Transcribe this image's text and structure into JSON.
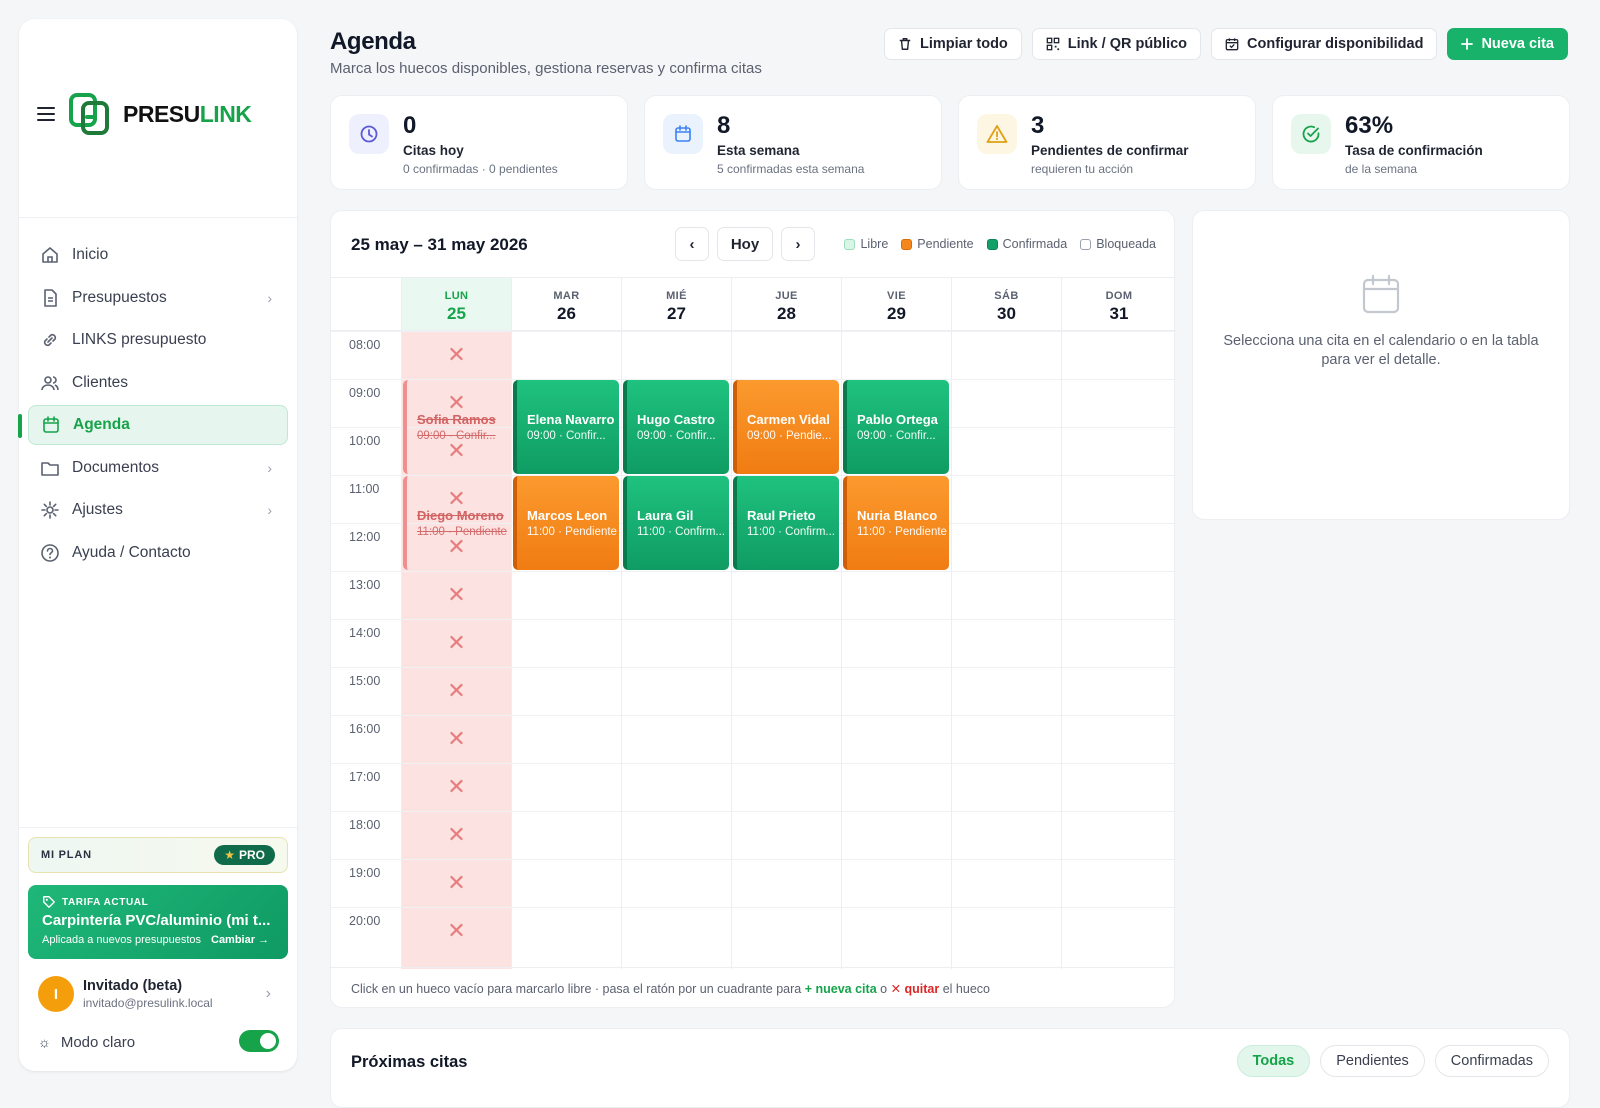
{
  "sidebar": {
    "brand": {
      "part1": "PRESU",
      "part2": "LINK"
    },
    "items": [
      {
        "label": "Inicio",
        "icon": "home-icon",
        "chevron": false,
        "active": false
      },
      {
        "label": "Presupuestos",
        "icon": "document-icon",
        "chevron": true,
        "active": false
      },
      {
        "label": "LINKS presupuesto",
        "icon": "link-icon",
        "chevron": false,
        "active": false
      },
      {
        "label": "Clientes",
        "icon": "users-icon",
        "chevron": false,
        "active": false
      },
      {
        "label": "Agenda",
        "icon": "calendar-icon",
        "chevron": false,
        "active": true
      },
      {
        "label": "Documentos",
        "icon": "folder-icon",
        "chevron": true,
        "active": false
      },
      {
        "label": "Ajustes",
        "icon": "gear-icon",
        "chevron": true,
        "active": false
      },
      {
        "label": "Ayuda / Contacto",
        "icon": "help-icon",
        "chevron": false,
        "active": false
      }
    ],
    "plan": {
      "label": "MI PLAN",
      "badge": "PRO"
    },
    "tarifa": {
      "tag": "TARIFA ACTUAL",
      "name": "Carpintería PVC/aluminio (mi t...",
      "note": "Aplicada a nuevos presupuestos",
      "action": "Cambiar →"
    },
    "user": {
      "initial": "I",
      "name": "Invitado (beta)",
      "email": "invitado@presulink.local"
    },
    "mode": {
      "label": "Modo claro",
      "on": true
    }
  },
  "header": {
    "title": "Agenda",
    "subtitle": "Marca los huecos disponibles, gestiona reservas y confirma citas",
    "actions": [
      {
        "label": "Limpiar todo",
        "icon": "trash-icon",
        "primary": false
      },
      {
        "label": "Link / QR público",
        "icon": "qr-icon",
        "primary": false
      },
      {
        "label": "Configurar disponibilidad",
        "icon": "calendar-check-icon",
        "primary": false
      },
      {
        "label": "Nueva cita",
        "icon": "plus-icon",
        "primary": true
      }
    ]
  },
  "stats": [
    {
      "value": "0",
      "label": "Citas hoy",
      "sub": "0 confirmadas · 0 pendientes",
      "icon": "clock-icon",
      "color": "#5b5bd6",
      "bg": "#eef0fd"
    },
    {
      "value": "8",
      "label": "Esta semana",
      "sub": "5 confirmadas esta semana",
      "icon": "calendar-icon",
      "color": "#3b82f6",
      "bg": "#eaf2fe"
    },
    {
      "value": "3",
      "label": "Pendientes de confirmar",
      "sub": "requieren tu acción",
      "icon": "warning-icon",
      "color": "#e0a012",
      "bg": "#fdf6e3"
    },
    {
      "value": "63%",
      "label": "Tasa de confirmación",
      "sub": "de la semana",
      "icon": "check-circle-icon",
      "color": "#16a34a",
      "bg": "#e7f7ee"
    }
  ],
  "calendar": {
    "range": "25 may – 31 may 2026",
    "today_label": "Hoy",
    "prev": "‹",
    "next": "›",
    "legend": [
      {
        "label": "Libre",
        "color": "#d9f5e6",
        "border": "#9ddcbc"
      },
      {
        "label": "Pendiente",
        "color": "#f5861c",
        "border": "#d96d0a"
      },
      {
        "label": "Confirmada",
        "color": "#11a068",
        "border": "#0b8656"
      },
      {
        "label": "Bloqueada",
        "color": "#ffffff",
        "border": "#9aa0ac"
      }
    ],
    "days": [
      {
        "name": "LUN",
        "num": "25",
        "today": true,
        "blocked": true
      },
      {
        "name": "MAR",
        "num": "26",
        "today": false,
        "blocked": false
      },
      {
        "name": "MIÉ",
        "num": "27",
        "today": false,
        "blocked": false
      },
      {
        "name": "JUE",
        "num": "28",
        "today": false,
        "blocked": false
      },
      {
        "name": "VIE",
        "num": "29",
        "today": false,
        "blocked": false
      },
      {
        "name": "SÁB",
        "num": "30",
        "today": false,
        "blocked": false
      },
      {
        "name": "DOM",
        "num": "31",
        "today": false,
        "blocked": false
      }
    ],
    "hours": [
      "08:00",
      "09:00",
      "10:00",
      "11:00",
      "12:00",
      "13:00",
      "14:00",
      "15:00",
      "16:00",
      "17:00",
      "18:00",
      "19:00",
      "20:00"
    ],
    "appointments": [
      {
        "day": 0,
        "start": 9,
        "name": "Sofia Ramos",
        "meta": "09:00 · Confir...",
        "status": "cancelled"
      },
      {
        "day": 0,
        "start": 11,
        "name": "Diego Moreno",
        "meta": "11:00 · Pendiente",
        "status": "cancelled"
      },
      {
        "day": 1,
        "start": 9,
        "name": "Elena Navarro",
        "meta": "09:00 · Confir...",
        "status": "confirmed"
      },
      {
        "day": 2,
        "start": 9,
        "name": "Hugo Castro",
        "meta": "09:00 · Confir...",
        "status": "confirmed"
      },
      {
        "day": 3,
        "start": 9,
        "name": "Carmen Vidal",
        "meta": "09:00 · Pendie...",
        "status": "pending"
      },
      {
        "day": 4,
        "start": 9,
        "name": "Pablo Ortega",
        "meta": "09:00 · Confir...",
        "status": "confirmed"
      },
      {
        "day": 1,
        "start": 11,
        "name": "Marcos Leon",
        "meta": "11:00 · Pendiente",
        "status": "pending"
      },
      {
        "day": 2,
        "start": 11,
        "name": "Laura Gil",
        "meta": "11:00 · Confirm...",
        "status": "confirmed"
      },
      {
        "day": 3,
        "start": 11,
        "name": "Raul Prieto",
        "meta": "11:00 · Confirm...",
        "status": "confirmed"
      },
      {
        "day": 4,
        "start": 11,
        "name": "Nuria Blanco",
        "meta": "11:00 · Pendiente",
        "status": "pending"
      }
    ],
    "footer": {
      "part1": "Click en un hueco vacío para marcarlo libre · pasa el ratón por un cuadrante para ",
      "new": "+ nueva cita",
      "part2": " o ",
      "remove": "✕ quitar",
      "part3": " el hueco"
    }
  },
  "detail": {
    "text": "Selecciona una cita en el calendario o en la tabla para ver el detalle."
  },
  "upcoming": {
    "title": "Próximas citas",
    "filters": [
      {
        "label": "Todas",
        "on": true
      },
      {
        "label": "Pendientes",
        "on": false
      },
      {
        "label": "Confirmadas",
        "on": false
      }
    ]
  }
}
